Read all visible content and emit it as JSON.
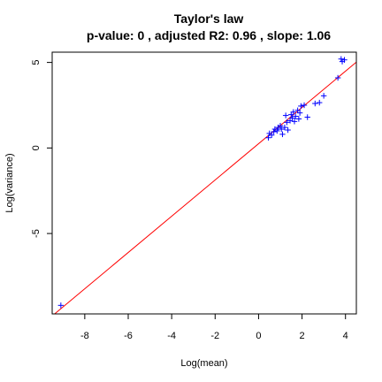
{
  "chart_data": {
    "type": "scatter",
    "title": "Taylor's law",
    "subtitle": "p-value: 0 , adjusted R2: 0.96 , slope: 1.06",
    "xlabel": "Log(mean)",
    "ylabel": "Log(variance)",
    "xlim": [
      -9.5,
      4.5
    ],
    "ylim": [
      -9.7,
      5.6
    ],
    "x_ticks": [
      -8,
      -6,
      -4,
      -2,
      0,
      2,
      4
    ],
    "y_ticks": [
      -5,
      0,
      5
    ],
    "grid": false,
    "point_color": "#0000ff",
    "line_color": "#ff0000",
    "fit_line": {
      "intercept": 0.25,
      "slope": 1.06
    },
    "points": [
      {
        "x": -9.1,
        "y": -9.2
      },
      {
        "x": 0.45,
        "y": 0.6
      },
      {
        "x": 0.5,
        "y": 0.85
      },
      {
        "x": 0.6,
        "y": 0.75
      },
      {
        "x": 0.7,
        "y": 0.95
      },
      {
        "x": 0.75,
        "y": 1.1
      },
      {
        "x": 0.85,
        "y": 1.0
      },
      {
        "x": 0.9,
        "y": 1.2
      },
      {
        "x": 1.0,
        "y": 1.3
      },
      {
        "x": 1.05,
        "y": 1.1
      },
      {
        "x": 1.1,
        "y": 0.8
      },
      {
        "x": 1.2,
        "y": 1.2
      },
      {
        "x": 1.25,
        "y": 1.9
      },
      {
        "x": 1.3,
        "y": 1.5
      },
      {
        "x": 1.35,
        "y": 1.05
      },
      {
        "x": 1.45,
        "y": 1.6
      },
      {
        "x": 1.5,
        "y": 1.95
      },
      {
        "x": 1.55,
        "y": 1.75
      },
      {
        "x": 1.6,
        "y": 2.1
      },
      {
        "x": 1.65,
        "y": 1.55
      },
      {
        "x": 1.7,
        "y": 1.85
      },
      {
        "x": 1.8,
        "y": 2.2
      },
      {
        "x": 1.85,
        "y": 1.7
      },
      {
        "x": 1.9,
        "y": 2.05
      },
      {
        "x": 1.95,
        "y": 2.45
      },
      {
        "x": 2.1,
        "y": 2.5
      },
      {
        "x": 2.25,
        "y": 1.8
      },
      {
        "x": 2.6,
        "y": 2.6
      },
      {
        "x": 2.8,
        "y": 2.65
      },
      {
        "x": 3.0,
        "y": 3.05
      },
      {
        "x": 3.65,
        "y": 4.1
      },
      {
        "x": 3.8,
        "y": 5.2
      },
      {
        "x": 3.85,
        "y": 5.05
      },
      {
        "x": 3.95,
        "y": 5.15
      }
    ]
  }
}
